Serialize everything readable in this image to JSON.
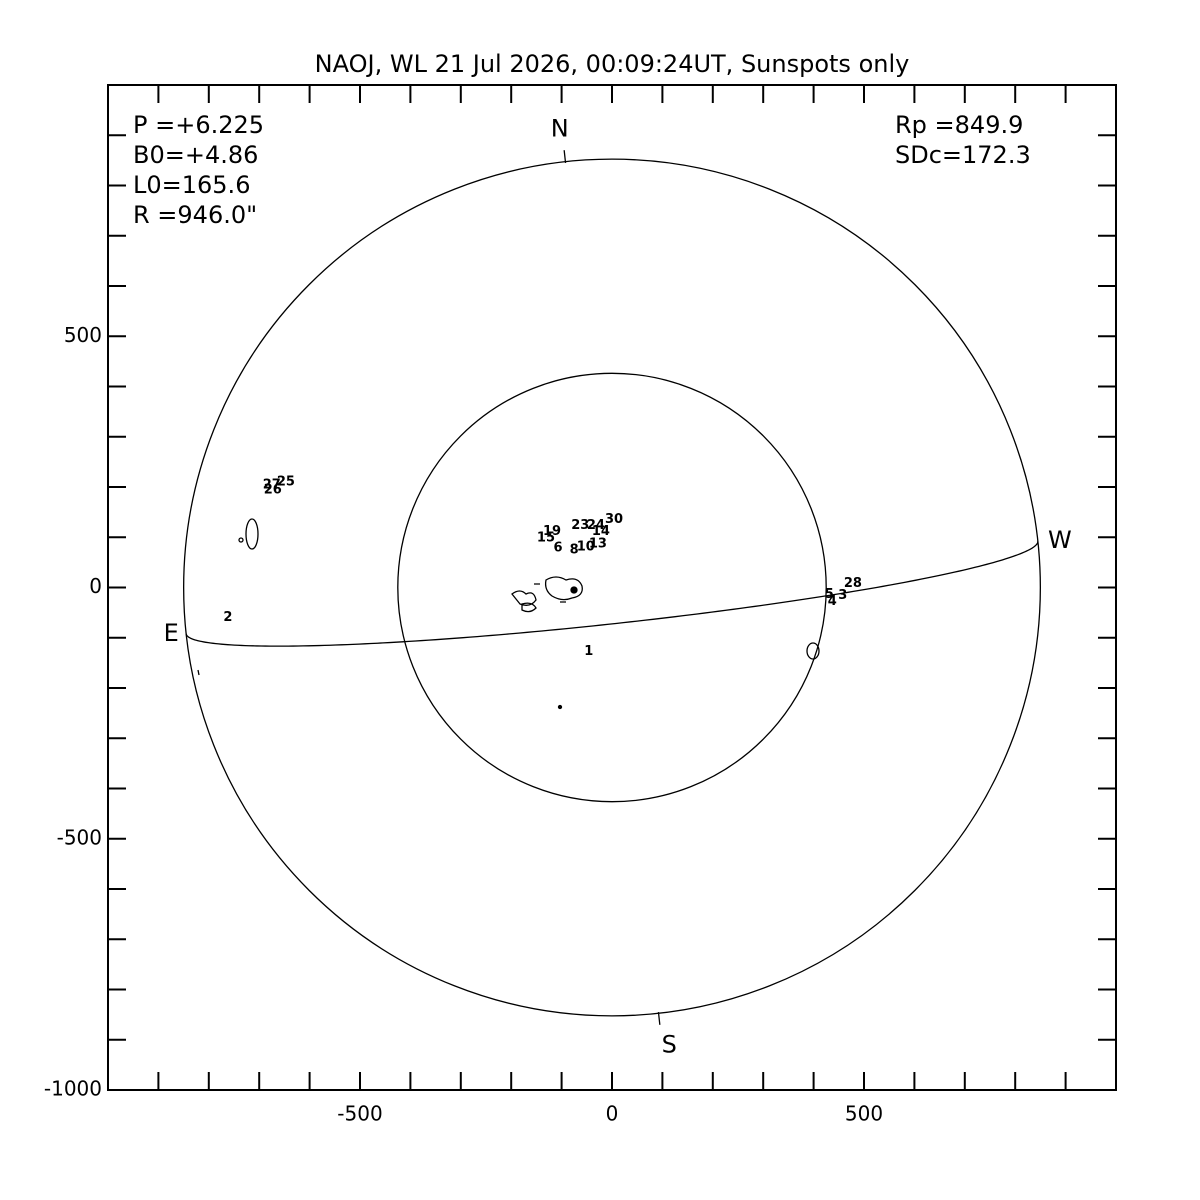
{
  "chart_data": {
    "type": "solar_disk",
    "title": "NAOJ, WL 21 Jul 2026, 00:09:24UT, Sunspots only",
    "info_left": [
      "P =+6.225",
      "B0=+4.86",
      "L0=165.6",
      "R =946.0\""
    ],
    "info_right": [
      "Rp =849.9",
      "SDc=172.3"
    ],
    "radius": 849.9,
    "p_angle": 6.225,
    "b0": 4.86,
    "inner_radius": 425,
    "directions": {
      "north": "N",
      "south": "S",
      "east": "E",
      "west": "W"
    },
    "xlim": [
      -1000,
      1000
    ],
    "ylim": [
      -1000,
      1000
    ],
    "xticks": [
      -500,
      0,
      500
    ],
    "yticks": [
      -1000,
      -500,
      0,
      500
    ],
    "minor_ticks": [
      -900,
      -800,
      -700,
      -600,
      -500,
      -400,
      -300,
      -200,
      -100,
      0,
      100,
      200,
      300,
      400,
      500,
      600,
      700,
      800,
      900
    ],
    "spots": [
      {
        "label": "25",
        "x": -647,
        "y": 210
      },
      {
        "label": "27",
        "x": -675,
        "y": 204
      },
      {
        "label": "26",
        "x": -673,
        "y": 194
      },
      {
        "label": "2",
        "x": -762,
        "y": -60
      },
      {
        "label": "1",
        "x": -46,
        "y": -127
      },
      {
        "label": "28",
        "x": 478,
        "y": 8
      },
      {
        "label": "5",
        "x": 431,
        "y": -14
      },
      {
        "label": "3",
        "x": 458,
        "y": -16
      },
      {
        "label": "4",
        "x": 437,
        "y": -28
      },
      {
        "label": "30",
        "x": 4,
        "y": 135
      },
      {
        "label": "24",
        "x": -32,
        "y": 123
      },
      {
        "label": "23",
        "x": -63,
        "y": 123
      },
      {
        "label": "14",
        "x": -22,
        "y": 111
      },
      {
        "label": "19",
        "x": -119,
        "y": 111
      },
      {
        "label": "15",
        "x": -131,
        "y": 99
      },
      {
        "label": "13",
        "x": -28,
        "y": 87
      },
      {
        "label": "6",
        "x": -107,
        "y": 79
      },
      {
        "label": "8",
        "x": -75,
        "y": 75
      },
      {
        "label": "10",
        "x": -52,
        "y": 81
      }
    ]
  }
}
